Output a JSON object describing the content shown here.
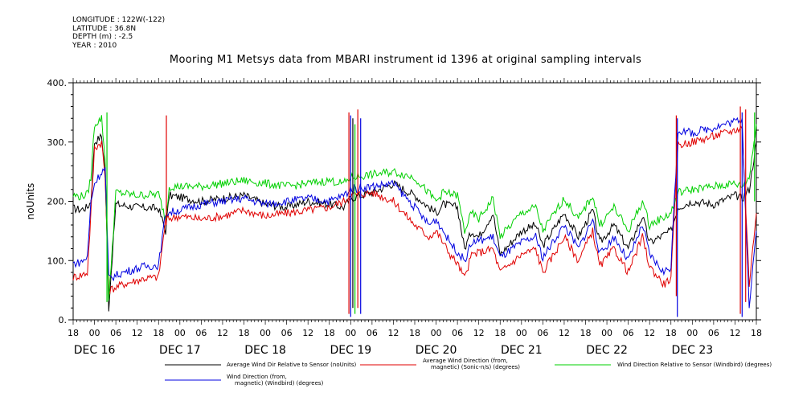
{
  "header": {
    "longitude": "LONGITUDE : 122W(-122)",
    "latitude": "LATITUDE : 36.8N",
    "depth": "DEPTH (m) : -2.5",
    "year": "YEAR : 2010",
    "title": "Mooring M1 Metsys data from MBARI instrument id 1396 at original sampling intervals"
  },
  "chart_data": {
    "type": "line",
    "ylabel": "noUnits",
    "ylim": [
      0,
      400
    ],
    "y_ticks": [
      "0.",
      "100.",
      "200.",
      "300.",
      "400."
    ],
    "x_hour_labels": [
      "18",
      "00",
      "06",
      "12",
      "18",
      "00",
      "06",
      "12",
      "18",
      "00",
      "06",
      "12",
      "18",
      "00",
      "06",
      "12",
      "18",
      "00",
      "06",
      "12",
      "18",
      "00",
      "06",
      "12",
      "18",
      "00",
      "06",
      "12",
      "18",
      "00",
      "06",
      "12",
      "18"
    ],
    "x_day_labels": [
      "DEC 16",
      "DEC 17",
      "DEC 18",
      "DEC 19",
      "DEC 20",
      "DEC 21",
      "DEC 22",
      "DEC 23"
    ],
    "xlim_hours": [
      "2010-12-15 18:00",
      "2010-12-23 18:00"
    ],
    "series": [
      {
        "name": "Average Wind Dir Relative to Sensor (noUnits)",
        "color": "#000000",
        "points": [
          [
            0,
            188
          ],
          [
            2,
            186
          ],
          [
            4,
            190
          ],
          [
            5,
            200
          ],
          [
            6,
            300
          ],
          [
            8,
            310
          ],
          [
            9,
            250
          ],
          [
            10,
            20
          ],
          [
            12,
            195
          ],
          [
            18,
            190
          ],
          [
            24,
            188
          ],
          [
            26,
            150
          ],
          [
            27,
            210
          ],
          [
            36,
            200
          ],
          [
            42,
            205
          ],
          [
            48,
            210
          ],
          [
            54,
            195
          ],
          [
            60,
            190
          ],
          [
            66,
            200
          ],
          [
            72,
            195
          ],
          [
            76,
            190
          ],
          [
            78,
            205
          ],
          [
            84,
            215
          ],
          [
            90,
            230
          ],
          [
            96,
            210
          ],
          [
            102,
            180
          ],
          [
            104,
            195
          ],
          [
            108,
            190
          ],
          [
            110,
            120
          ],
          [
            112,
            150
          ],
          [
            114,
            140
          ],
          [
            118,
            180
          ],
          [
            120,
            110
          ],
          [
            126,
            150
          ],
          [
            130,
            160
          ],
          [
            132,
            125
          ],
          [
            138,
            180
          ],
          [
            142,
            140
          ],
          [
            146,
            185
          ],
          [
            148,
            130
          ],
          [
            152,
            160
          ],
          [
            156,
            120
          ],
          [
            160,
            175
          ],
          [
            162,
            130
          ],
          [
            168,
            150
          ],
          [
            170,
            190
          ],
          [
            174,
            200
          ],
          [
            180,
            195
          ],
          [
            186,
            210
          ],
          [
            188,
            205
          ],
          [
            190,
            220
          ],
          [
            192,
            300
          ]
        ]
      },
      {
        "name": "Average Wind Direction (from, magnetic) (Sonic-n/s) (degrees)",
        "color": "#e00000",
        "points": [
          [
            0,
            72
          ],
          [
            2,
            75
          ],
          [
            4,
            80
          ],
          [
            5,
            180
          ],
          [
            6,
            290
          ],
          [
            8,
            300
          ],
          [
            9,
            240
          ],
          [
            10,
            50
          ],
          [
            14,
            60
          ],
          [
            20,
            70
          ],
          [
            24,
            72
          ],
          [
            26,
            170
          ],
          [
            30,
            175
          ],
          [
            36,
            170
          ],
          [
            42,
            175
          ],
          [
            48,
            185
          ],
          [
            54,
            175
          ],
          [
            60,
            180
          ],
          [
            66,
            185
          ],
          [
            72,
            190
          ],
          [
            76,
            200
          ],
          [
            78,
            210
          ],
          [
            84,
            215
          ],
          [
            90,
            200
          ],
          [
            96,
            160
          ],
          [
            100,
            140
          ],
          [
            102,
            150
          ],
          [
            104,
            130
          ],
          [
            106,
            110
          ],
          [
            108,
            95
          ],
          [
            110,
            70
          ],
          [
            112,
            110
          ],
          [
            118,
            120
          ],
          [
            120,
            80
          ],
          [
            126,
            110
          ],
          [
            130,
            120
          ],
          [
            132,
            80
          ],
          [
            138,
            140
          ],
          [
            142,
            100
          ],
          [
            146,
            150
          ],
          [
            148,
            90
          ],
          [
            152,
            120
          ],
          [
            156,
            80
          ],
          [
            160,
            140
          ],
          [
            162,
            90
          ],
          [
            166,
            60
          ],
          [
            168,
            70
          ],
          [
            170,
            295
          ],
          [
            174,
            300
          ],
          [
            180,
            310
          ],
          [
            186,
            320
          ],
          [
            188,
            325
          ],
          [
            190,
            60
          ],
          [
            192,
            180
          ]
        ]
      },
      {
        "name": "Wind Direction Relative to Sensor (Windbird) (degrees)",
        "color": "#00d000",
        "points": [
          [
            0,
            210
          ],
          [
            2,
            208
          ],
          [
            4,
            212
          ],
          [
            5,
            240
          ],
          [
            6,
            330
          ],
          [
            8,
            340
          ],
          [
            9,
            270
          ],
          [
            10,
            30
          ],
          [
            12,
            215
          ],
          [
            18,
            210
          ],
          [
            24,
            212
          ],
          [
            26,
            170
          ],
          [
            27,
            225
          ],
          [
            36,
            225
          ],
          [
            42,
            230
          ],
          [
            48,
            235
          ],
          [
            54,
            230
          ],
          [
            60,
            225
          ],
          [
            66,
            230
          ],
          [
            72,
            235
          ],
          [
            76,
            230
          ],
          [
            78,
            240
          ],
          [
            84,
            245
          ],
          [
            90,
            250
          ],
          [
            96,
            240
          ],
          [
            102,
            200
          ],
          [
            104,
            215
          ],
          [
            108,
            210
          ],
          [
            110,
            150
          ],
          [
            112,
            180
          ],
          [
            114,
            170
          ],
          [
            118,
            205
          ],
          [
            120,
            140
          ],
          [
            126,
            180
          ],
          [
            130,
            190
          ],
          [
            132,
            150
          ],
          [
            138,
            205
          ],
          [
            142,
            170
          ],
          [
            146,
            210
          ],
          [
            148,
            160
          ],
          [
            152,
            190
          ],
          [
            156,
            150
          ],
          [
            160,
            200
          ],
          [
            162,
            160
          ],
          [
            168,
            180
          ],
          [
            170,
            215
          ],
          [
            174,
            220
          ],
          [
            180,
            225
          ],
          [
            186,
            230
          ],
          [
            188,
            225
          ],
          [
            190,
            240
          ],
          [
            192,
            330
          ]
        ]
      },
      {
        "name": "Wind Direction (from, magnetic) (Windbird) (degrees)",
        "color": "#0000e0",
        "points": [
          [
            0,
            95
          ],
          [
            2,
            97
          ],
          [
            4,
            105
          ],
          [
            5,
            200
          ],
          [
            6,
            230
          ],
          [
            8,
            250
          ],
          [
            9,
            255
          ],
          [
            10,
            70
          ],
          [
            14,
            80
          ],
          [
            20,
            90
          ],
          [
            24,
            92
          ],
          [
            26,
            180
          ],
          [
            30,
            185
          ],
          [
            36,
            195
          ],
          [
            42,
            200
          ],
          [
            48,
            205
          ],
          [
            54,
            195
          ],
          [
            60,
            200
          ],
          [
            66,
            205
          ],
          [
            72,
            200
          ],
          [
            76,
            210
          ],
          [
            78,
            220
          ],
          [
            84,
            225
          ],
          [
            90,
            230
          ],
          [
            96,
            190
          ],
          [
            100,
            160
          ],
          [
            102,
            170
          ],
          [
            104,
            150
          ],
          [
            106,
            130
          ],
          [
            108,
            115
          ],
          [
            110,
            100
          ],
          [
            112,
            130
          ],
          [
            118,
            140
          ],
          [
            120,
            105
          ],
          [
            126,
            130
          ],
          [
            130,
            140
          ],
          [
            132,
            105
          ],
          [
            138,
            160
          ],
          [
            142,
            120
          ],
          [
            146,
            170
          ],
          [
            148,
            110
          ],
          [
            152,
            140
          ],
          [
            156,
            100
          ],
          [
            160,
            160
          ],
          [
            162,
            110
          ],
          [
            166,
            80
          ],
          [
            168,
            90
          ],
          [
            170,
            320
          ],
          [
            174,
            315
          ],
          [
            180,
            325
          ],
          [
            186,
            335
          ],
          [
            188,
            340
          ],
          [
            190,
            20
          ],
          [
            192,
            150
          ]
        ]
      }
    ],
    "spikes": [
      {
        "color": "#00d000",
        "hour": 9.5,
        "low": 30,
        "high": 350
      },
      {
        "color": "#e00000",
        "hour": 26.2,
        "low": 160,
        "high": 345
      },
      {
        "color": "#e00000",
        "hour": 77.5,
        "low": 10,
        "high": 350
      },
      {
        "color": "#0000e0",
        "hour": 78.0,
        "low": 5,
        "high": 345
      },
      {
        "color": "#000000",
        "hour": 78.6,
        "low": 20,
        "high": 340
      },
      {
        "color": "#00d000",
        "hour": 79.2,
        "low": 10,
        "high": 330
      },
      {
        "color": "#e00000",
        "hour": 80.0,
        "low": 20,
        "high": 355
      },
      {
        "color": "#0000e0",
        "hour": 80.8,
        "low": 10,
        "high": 340
      },
      {
        "color": "#e00000",
        "hour": 169.5,
        "low": 40,
        "high": 345
      },
      {
        "color": "#0000e0",
        "hour": 169.8,
        "low": 5,
        "high": 340
      },
      {
        "color": "#e00000",
        "hour": 187.5,
        "low": 10,
        "high": 360
      },
      {
        "color": "#0000e0",
        "hour": 188.0,
        "low": 5,
        "high": 350
      },
      {
        "color": "#e00000",
        "hour": 189.0,
        "low": 30,
        "high": 355
      },
      {
        "color": "#00d000",
        "hour": 191.5,
        "low": 200,
        "high": 350
      }
    ]
  },
  "legend": [
    {
      "label_line1": "Average Wind Dir Relative to Sensor (noUnits)",
      "label_line2": "",
      "color": "#000000"
    },
    {
      "label_line1": "Average Wind Direction (from,",
      "label_line2": "magnetic) (Sonic-n/s) (degrees)",
      "color": "#e00000"
    },
    {
      "label_line1": "Wind Direction Relative to Sensor (Windbird) (degrees)",
      "label_line2": "",
      "color": "#00d000"
    },
    {
      "label_line1": "Wind Direction (from,",
      "label_line2": "magnetic) (Windbird) (degrees)",
      "color": "#0000e0"
    }
  ]
}
